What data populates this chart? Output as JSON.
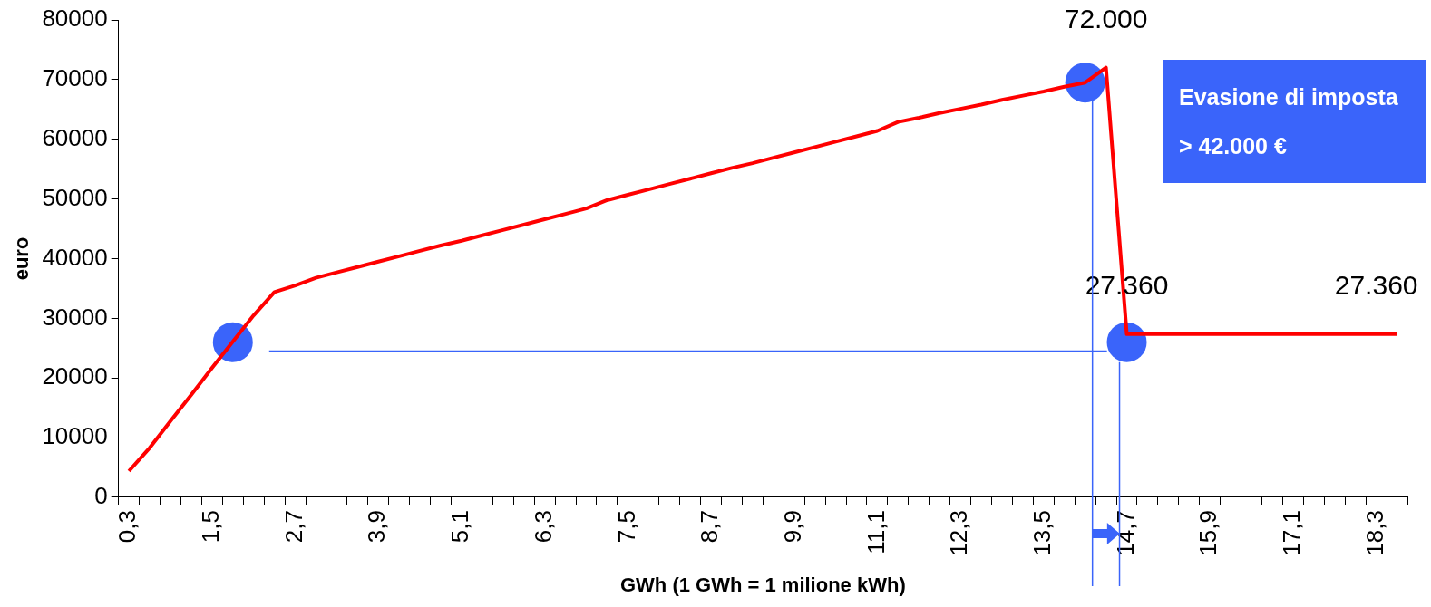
{
  "chart_data": {
    "type": "line",
    "xlabel": "GWh (1 GWh = 1 milione kWh)",
    "ylabel": "euro",
    "categories": [
      "0,3",
      null,
      null,
      null,
      "1,5",
      null,
      null,
      null,
      "2,7",
      null,
      null,
      null,
      "3,9",
      null,
      null,
      null,
      "5,1",
      null,
      null,
      null,
      "6,3",
      null,
      null,
      null,
      "7,5",
      null,
      null,
      null,
      "8,7",
      null,
      null,
      null,
      "9,9",
      null,
      null,
      null,
      "11,1",
      null,
      null,
      null,
      "12,3",
      null,
      null,
      null,
      "13,5",
      null,
      null,
      null,
      "14,7",
      null,
      null,
      null,
      "15,9",
      null,
      null,
      null,
      "17,1",
      null,
      null,
      null,
      "18,3",
      null
    ],
    "series": [
      {
        "color": "#ff0000",
        "values": [
          4400,
          8300,
          12800,
          17200,
          21700,
          26100,
          30500,
          34400,
          35500,
          36800,
          37700,
          38600,
          39500,
          40400,
          41300,
          42200,
          43000,
          43900,
          44800,
          45700,
          46600,
          47500,
          48400,
          49800,
          50700,
          51600,
          52500,
          53400,
          54300,
          55200,
          56000,
          56900,
          57800,
          58700,
          59600,
          60500,
          61400,
          62900,
          63600,
          64400,
          65100,
          65800,
          66600,
          67300,
          68000,
          68800,
          69500,
          72000,
          27360,
          27360,
          27360,
          27360,
          27360,
          27360,
          27360,
          27360,
          27360,
          27360,
          27360,
          27360,
          27360,
          27360
        ],
        "value_labels": [
          null,
          null,
          null,
          null,
          null,
          null,
          null,
          null,
          null,
          null,
          null,
          null,
          null,
          null,
          null,
          null,
          null,
          null,
          null,
          null,
          null,
          null,
          null,
          null,
          null,
          null,
          null,
          null,
          null,
          null,
          null,
          null,
          null,
          null,
          null,
          null,
          null,
          null,
          null,
          null,
          null,
          null,
          null,
          null,
          null,
          null,
          null,
          "72.000",
          "27.360",
          null,
          null,
          null,
          null,
          null,
          null,
          null,
          null,
          null,
          null,
          null,
          "27.360",
          null
        ]
      },
      {
        "type": "scatter",
        "marker": "circle",
        "color": "#3a64fa",
        "values": [
          null,
          null,
          null,
          null,
          null,
          26000,
          null,
          null,
          null,
          null,
          null,
          null,
          null,
          null,
          null,
          null,
          null,
          null,
          null,
          null,
          null,
          null,
          null,
          null,
          null,
          null,
          null,
          null,
          null,
          null,
          null,
          null,
          null,
          null,
          null,
          null,
          null,
          null,
          null,
          null,
          null,
          null,
          null,
          null,
          null,
          null,
          69500,
          null,
          26000,
          null,
          null,
          null,
          null,
          null,
          null,
          null,
          null,
          null,
          null,
          null,
          null,
          null
        ]
      }
    ],
    "ylim": [
      0,
      80000
    ],
    "yticks": [
      0,
      10000,
      20000,
      30000,
      40000,
      50000,
      60000,
      70000,
      80000
    ],
    "ref_lines": [
      {
        "axis": "y",
        "value": 24500,
        "color": "#3a64fa"
      }
    ],
    "grid": false,
    "legend": false,
    "marker": "none",
    "line_style": "solid",
    "annotations": [
      "Evasione di imposta",
      "> 42.000 €"
    ]
  }
}
